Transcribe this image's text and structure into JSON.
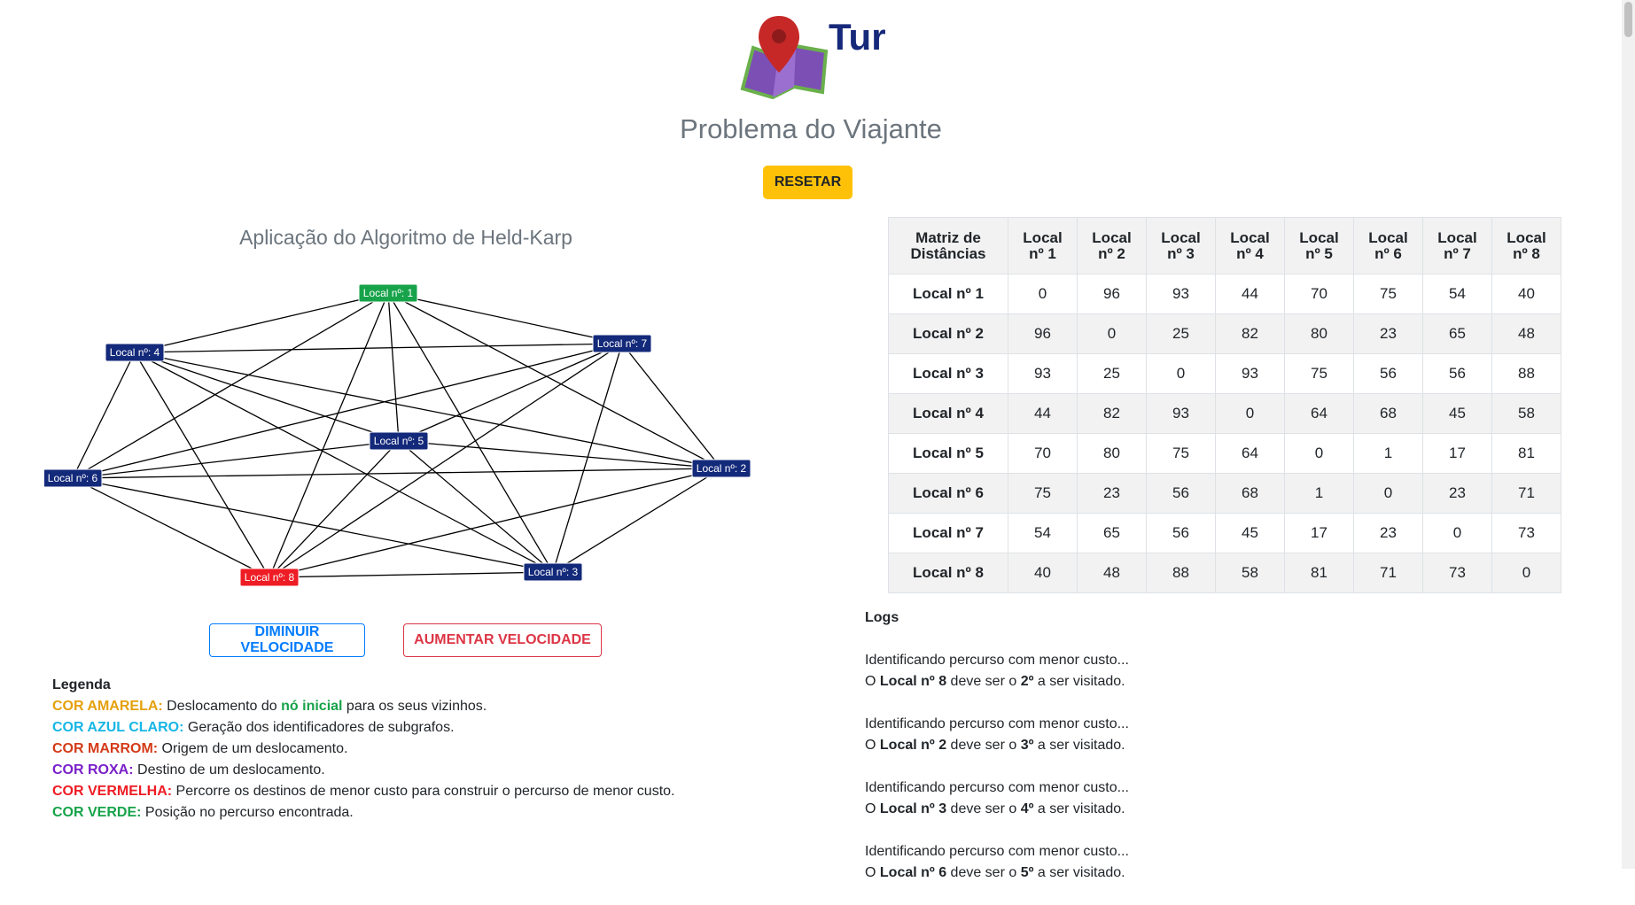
{
  "header": {
    "app_title": "Tur",
    "subtitle": "Problema do Viajante",
    "reset_label": "RESETAR"
  },
  "graph": {
    "title": "Aplicação do Algoritmo de Held-Karp",
    "colors": {
      "default": "#13297a",
      "start": "#17a34a",
      "target": "#ee1c24"
    },
    "nodes": [
      {
        "id": 1,
        "label": "Local nº: 1",
        "state": "start"
      },
      {
        "id": 2,
        "label": "Local nº: 2",
        "state": "default"
      },
      {
        "id": 3,
        "label": "Local nº: 3",
        "state": "default"
      },
      {
        "id": 4,
        "label": "Local nº: 4",
        "state": "default"
      },
      {
        "id": 5,
        "label": "Local nº: 5",
        "state": "default"
      },
      {
        "id": 6,
        "label": "Local nº: 6",
        "state": "default"
      },
      {
        "id": 7,
        "label": "Local nº: 7",
        "state": "default"
      },
      {
        "id": 8,
        "label": "Local nº: 8",
        "state": "target"
      }
    ]
  },
  "controls": {
    "slower_label": "DIMINUIR VELOCIDADE",
    "faster_label": "AUMENTAR VELOCIDADE"
  },
  "legend": {
    "title": "Legenda",
    "items": [
      {
        "key": "COR AMARELA:",
        "color": "#e5a00d",
        "text": " Deslocamento do ",
        "highlight": "nó inicial",
        "highlight_color": "#17a34a",
        "tail": " para os seus vizinhos."
      },
      {
        "key": "COR AZUL CLARO:",
        "color": "#17b6e5",
        "text": " Geração dos identificadores de subgrafos."
      },
      {
        "key": "COR MARROM:",
        "color": "#d43a17",
        "text": " Origem de um deslocamento."
      },
      {
        "key": "COR ROXA:",
        "color": "#7a1fc9",
        "text": " Destino de um deslocamento."
      },
      {
        "key": "COR VERMELHA:",
        "color": "#ee1c24",
        "text": " Percorre os destinos de menor custo para construir o percurso de menor custo."
      },
      {
        "key": "COR VERDE:",
        "color": "#17a34a",
        "text": " Posição no percurso encontrada."
      }
    ]
  },
  "matrix": {
    "corner_line1": "Matriz de",
    "corner_line2": "Distâncias",
    "columns": [
      [
        "Local",
        "nº 1"
      ],
      [
        "Local",
        "nº 2"
      ],
      [
        "Local",
        "nº 3"
      ],
      [
        "Local",
        "nº 4"
      ],
      [
        "Local",
        "nº 5"
      ],
      [
        "Local",
        "nº 6"
      ],
      [
        "Local",
        "nº 7"
      ],
      [
        "Local",
        "nº 8"
      ]
    ],
    "rows": [
      {
        "label": "Local nº 1",
        "values": [
          "0",
          "96",
          "93",
          "44",
          "70",
          "75",
          "54",
          "40"
        ]
      },
      {
        "label": "Local nº 2",
        "values": [
          "96",
          "0",
          "25",
          "82",
          "80",
          "23",
          "65",
          "48"
        ]
      },
      {
        "label": "Local nº 3",
        "values": [
          "93",
          "25",
          "0",
          "93",
          "75",
          "56",
          "56",
          "88"
        ]
      },
      {
        "label": "Local nº 4",
        "values": [
          "44",
          "82",
          "93",
          "0",
          "64",
          "68",
          "45",
          "58"
        ]
      },
      {
        "label": "Local nº 5",
        "values": [
          "70",
          "80",
          "75",
          "64",
          "0",
          "1",
          "17",
          "81"
        ]
      },
      {
        "label": "Local nº 6",
        "values": [
          "75",
          "23",
          "56",
          "68",
          "1",
          "0",
          "23",
          "71"
        ]
      },
      {
        "label": "Local nº 7",
        "values": [
          "54",
          "65",
          "56",
          "45",
          "17",
          "23",
          "0",
          "73"
        ]
      },
      {
        "label": "Local nº 8",
        "values": [
          "40",
          "48",
          "88",
          "58",
          "81",
          "71",
          "73",
          "0"
        ]
      }
    ]
  },
  "logs": {
    "title": "Logs",
    "entries": [
      {
        "line1": "Identificando percurso com menor custo...",
        "prefix": "O ",
        "place": "Local nº 8",
        "middle": " deve ser o ",
        "order": "2º",
        "suffix": " a ser visitado."
      },
      {
        "line1": "Identificando percurso com menor custo...",
        "prefix": "O ",
        "place": "Local nº 2",
        "middle": " deve ser o ",
        "order": "3º",
        "suffix": " a ser visitado."
      },
      {
        "line1": "Identificando percurso com menor custo...",
        "prefix": "O ",
        "place": "Local nº 3",
        "middle": " deve ser o ",
        "order": "4º",
        "suffix": " a ser visitado."
      },
      {
        "line1": "Identificando percurso com menor custo...",
        "prefix": "O ",
        "place": "Local nº 6",
        "middle": " deve ser o ",
        "order": "5º",
        "suffix": " a ser visitado."
      }
    ]
  }
}
